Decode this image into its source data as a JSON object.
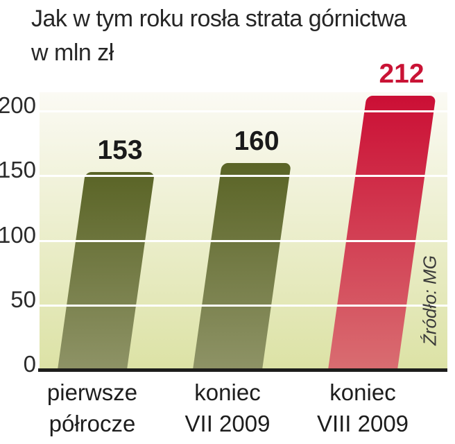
{
  "title": {
    "line1": "Jak w tym roku rosła strata górnictwa",
    "line2": "w mln zł"
  },
  "source": {
    "label": "Źródło: MG"
  },
  "colors": {
    "page_background": "#ffffff",
    "plot_gradient_top": "#fbfaf4",
    "plot_gradient_bottom": "#dce2a5",
    "gridline": "#ffffff",
    "baseline": "#1d1d1b",
    "olive_bar_top": "#5a6426",
    "olive_bar_bottom": "#8e9366",
    "red_bar_top": "#cb0f35",
    "red_bar_bottom": "#d96d71",
    "value_label_black": "#1a1a1a",
    "value_label_red": "#c91335",
    "axis_text": "#2b2b2b"
  },
  "chart_data": {
    "type": "bar",
    "title": "Jak w tym roku rosła strata górnictwa w mln zł",
    "categories": [
      {
        "line1": "pierwsze",
        "line2": "półrocze"
      },
      {
        "line1": "koniec",
        "line2": "VII 2009"
      },
      {
        "line1": "koniec",
        "line2": "VIII 2009"
      }
    ],
    "values": [
      153,
      160,
      212
    ],
    "value_labels": [
      "153",
      "160",
      "212"
    ],
    "value_label_colors": [
      "#1a1a1a",
      "#1a1a1a",
      "#c91335"
    ],
    "bar_gradients": [
      {
        "top": "#5a6426",
        "bottom": "#8e9366"
      },
      {
        "top": "#5a6426",
        "bottom": "#8e9366"
      },
      {
        "top": "#cb0f35",
        "bottom": "#d96d71"
      }
    ],
    "xlabel": "",
    "ylabel": "",
    "yticks": [
      0,
      50,
      100,
      150,
      200
    ],
    "ylim": [
      0,
      214
    ],
    "grid": true,
    "legend": false,
    "bar_style": "skewed-parallelogram, rounded top",
    "source": "Źródło: MG"
  }
}
